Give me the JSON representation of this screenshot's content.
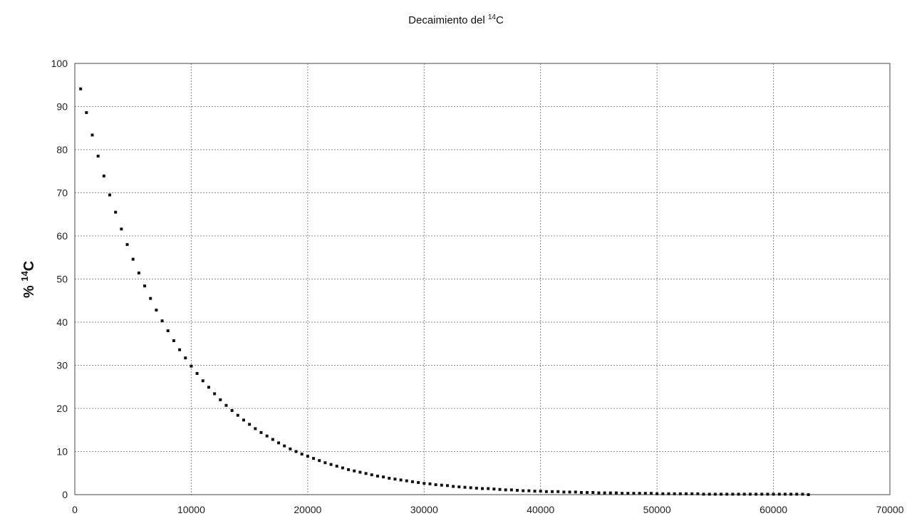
{
  "chart_data": {
    "type": "scatter",
    "title": {
      "main": "Decaimiento del ",
      "sup": "14",
      "suffix": "C"
    },
    "ylabel": {
      "main": "% ",
      "sup": "14",
      "suffix": "C"
    },
    "xlabel": "",
    "xlim": [
      0,
      70000
    ],
    "ylim": [
      0,
      100
    ],
    "xticks": [
      "0",
      "10000",
      "20000",
      "30000",
      "40000",
      "50000",
      "60000",
      "70000"
    ],
    "yticks": [
      "0",
      "10",
      "20",
      "30",
      "40",
      "50",
      "60",
      "70",
      "80",
      "90",
      "100"
    ],
    "grid": true,
    "legend": "none",
    "marker_color": "#111111",
    "series": [
      {
        "decay": "exponential",
        "half_life": 5730,
        "x": [
          500,
          1000,
          1500,
          2000,
          2500,
          3000,
          3500,
          4000,
          4500,
          5000,
          5500,
          6000,
          6500,
          7000,
          7500,
          8000,
          8500,
          9000,
          9500,
          10000,
          10500,
          11000,
          11500,
          12000,
          12500,
          13000,
          13500,
          14000,
          14500,
          15000,
          15500,
          16000,
          16500,
          17000,
          17500,
          18000,
          18500,
          19000,
          19500,
          20000,
          20500,
          21000,
          21500,
          22000,
          22500,
          23000,
          23500,
          24000,
          24500,
          25000,
          25500,
          26000,
          26500,
          27000,
          27500,
          28000,
          28500,
          29000,
          29500,
          30000,
          30500,
          31000,
          31500,
          32000,
          32500,
          33000,
          33500,
          34000,
          34500,
          35000,
          35500,
          36000,
          36500,
          37000,
          37500,
          38000,
          38500,
          39000,
          39500,
          40000,
          40500,
          41000,
          41500,
          42000,
          42500,
          43000,
          43500,
          44000,
          44500,
          45000,
          45500,
          46000,
          46500,
          47000,
          47500,
          48000,
          48500,
          49000,
          49500,
          50000,
          50500,
          51000,
          51500,
          52000,
          52500,
          53000,
          53500,
          54000,
          54500,
          55000,
          55500,
          56000,
          56500,
          57000,
          57500,
          58000,
          58500,
          59000,
          59500,
          60000,
          60500,
          61000,
          61500,
          62000,
          62500,
          63000
        ],
        "y": [
          94.1,
          88.6,
          83.4,
          78.5,
          73.9,
          69.5,
          65.5,
          61.6,
          58.0,
          54.6,
          51.4,
          48.4,
          45.5,
          42.8,
          40.3,
          38.0,
          35.7,
          33.6,
          31.7,
          29.8,
          28.1,
          26.4,
          24.9,
          23.4,
          22.0,
          20.7,
          19.5,
          18.4,
          17.3,
          16.3,
          15.3,
          14.4,
          13.6,
          12.8,
          12.0,
          11.3,
          10.6,
          10.0,
          9.4,
          8.9,
          8.4,
          7.9,
          7.4,
          7.0,
          6.6,
          6.2,
          5.8,
          5.5,
          5.2,
          4.9,
          4.6,
          4.3,
          4.1,
          3.8,
          3.6,
          3.4,
          3.2,
          3.0,
          2.8,
          2.6,
          2.5,
          2.3,
          2.2,
          2.1,
          1.9,
          1.8,
          1.7,
          1.6,
          1.5,
          1.4,
          1.4,
          1.3,
          1.2,
          1.1,
          1.1,
          1.0,
          0.9,
          0.9,
          0.8,
          0.8,
          0.7,
          0.7,
          0.7,
          0.6,
          0.6,
          0.6,
          0.5,
          0.5,
          0.5,
          0.4,
          0.4,
          0.4,
          0.4,
          0.3,
          0.3,
          0.3,
          0.3,
          0.3,
          0.3,
          0.2,
          0.2,
          0.2,
          0.2,
          0.2,
          0.2,
          0.2,
          0.2,
          0.1,
          0.1,
          0.1,
          0.1,
          0.1,
          0.1,
          0.1,
          0.1,
          0.1,
          0.1,
          0.1,
          0.1,
          0.1,
          0.1,
          0.1,
          0.1,
          0.1,
          0.1,
          0.0
        ]
      }
    ]
  }
}
